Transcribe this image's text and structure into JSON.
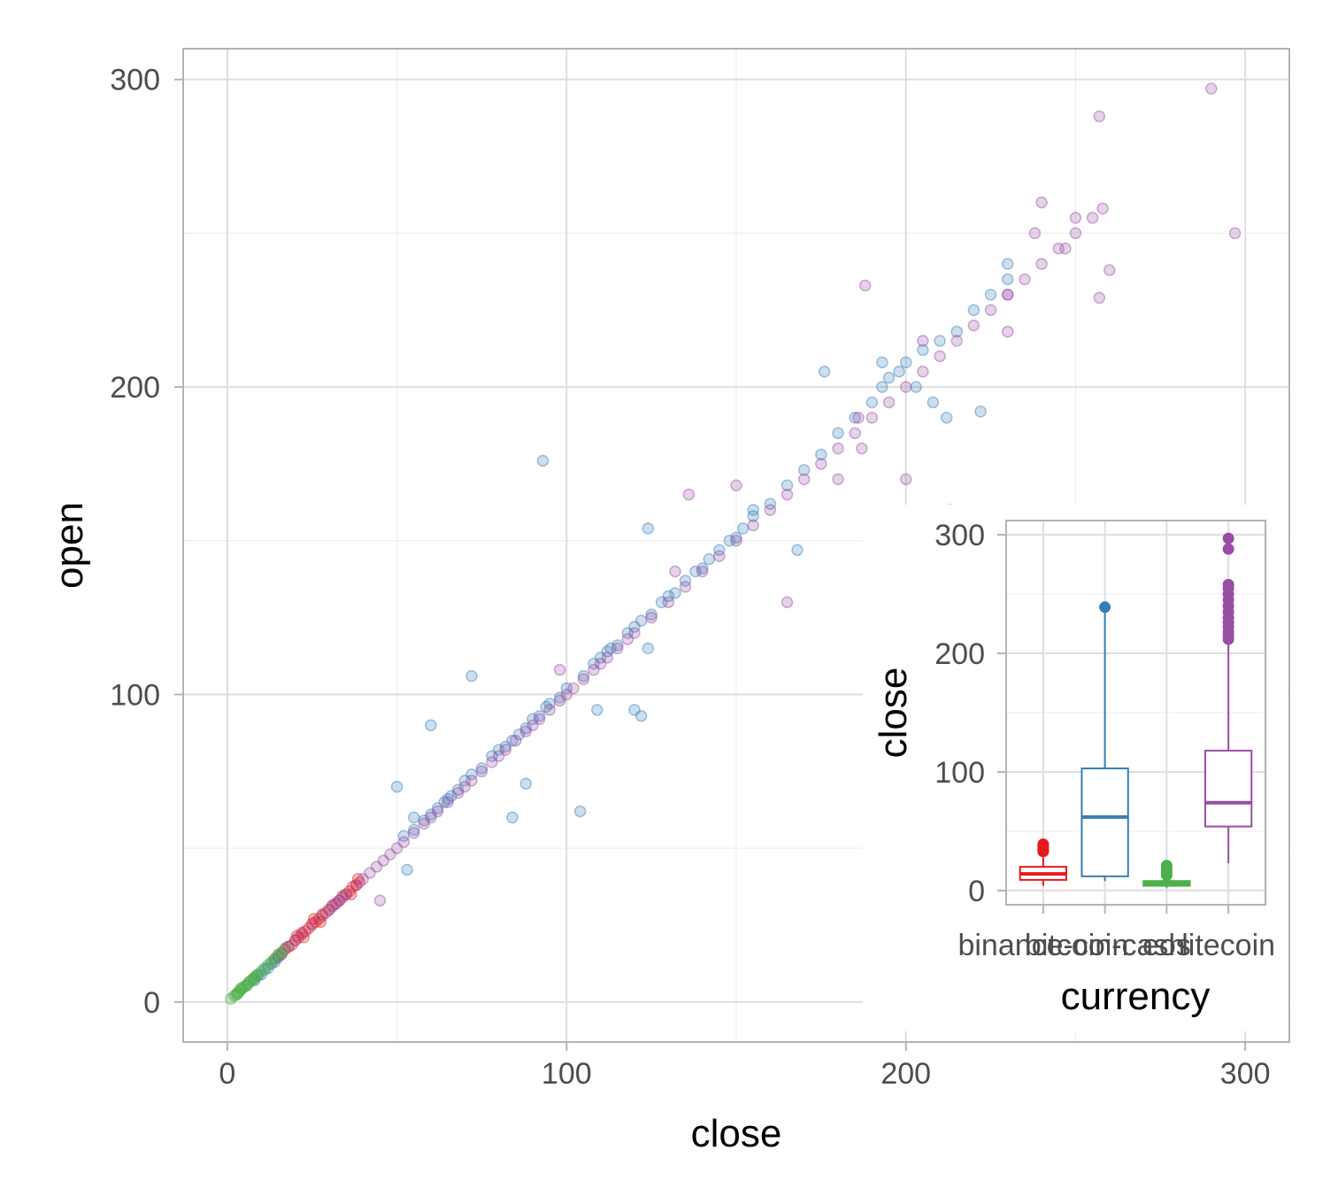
{
  "chart_data": [
    {
      "type": "scatter",
      "xlabel": "close",
      "ylabel": "open",
      "xlim": [
        -13,
        313
      ],
      "ylim": [
        -13,
        310
      ],
      "x_ticks": [
        0,
        100,
        200,
        300
      ],
      "y_ticks": [
        0,
        100,
        200,
        300
      ],
      "grid": true,
      "legend": "none",
      "point_alpha": 0.25,
      "series": [
        {
          "color": "#E41A1C",
          "points": [
            [
              14,
              14
            ],
            [
              15,
              15
            ],
            [
              16,
              15.5
            ],
            [
              17,
              17
            ],
            [
              18,
              18
            ],
            [
              19,
              18.5
            ],
            [
              20,
              20
            ],
            [
              21,
              21
            ],
            [
              22,
              22.5
            ],
            [
              23,
              23
            ],
            [
              24,
              24
            ],
            [
              25,
              25.5
            ],
            [
              26,
              26
            ],
            [
              27,
              27
            ],
            [
              28,
              28.5
            ],
            [
              29,
              29
            ],
            [
              30,
              30
            ],
            [
              31,
              31.5
            ],
            [
              32,
              32
            ],
            [
              33,
              33
            ],
            [
              34,
              34.5
            ],
            [
              35,
              35
            ],
            [
              36,
              36
            ],
            [
              37,
              37.5
            ],
            [
              38,
              38
            ],
            [
              39,
              39
            ],
            [
              38.5,
              40
            ],
            [
              36.5,
              35
            ],
            [
              27.5,
              26
            ],
            [
              25.5,
              27
            ],
            [
              22.5,
              21
            ],
            [
              20.5,
              21.5
            ]
          ]
        },
        {
          "color": "#377EB8",
          "points": [
            [
              8,
              7
            ],
            [
              9,
              8.5
            ],
            [
              10,
              9
            ],
            [
              11,
              10.5
            ],
            [
              12,
              11
            ],
            [
              13,
              12.5
            ],
            [
              14,
              13
            ],
            [
              15,
              14.5
            ],
            [
              16,
              16
            ],
            [
              52,
              54
            ],
            [
              55,
              56
            ],
            [
              58,
              59
            ],
            [
              60,
              61
            ],
            [
              62,
              63
            ],
            [
              64,
              65
            ],
            [
              65,
              66
            ],
            [
              66,
              67
            ],
            [
              68,
              69
            ],
            [
              70,
              72
            ],
            [
              72,
              74
            ],
            [
              75,
              76
            ],
            [
              78,
              80
            ],
            [
              80,
              82
            ],
            [
              82,
              83
            ],
            [
              84,
              85
            ],
            [
              86,
              87
            ],
            [
              88,
              89
            ],
            [
              90,
              92
            ],
            [
              92,
              93
            ],
            [
              95,
              97
            ],
            [
              98,
              99
            ],
            [
              100,
              102
            ],
            [
              105,
              106
            ],
            [
              108,
              110
            ],
            [
              110,
              112
            ],
            [
              112,
              114
            ],
            [
              115,
              116
            ],
            [
              118,
              120
            ],
            [
              120,
              122
            ],
            [
              122,
              124
            ],
            [
              125,
              126
            ],
            [
              128,
              130
            ],
            [
              130,
              132
            ],
            [
              132,
              133
            ],
            [
              135,
              137
            ],
            [
              138,
              140
            ],
            [
              140,
              141
            ],
            [
              142,
              144
            ],
            [
              145,
              147
            ],
            [
              148,
              150
            ],
            [
              150,
              151
            ],
            [
              152,
              154
            ],
            [
              155,
              158
            ],
            [
              160,
              162
            ],
            [
              165,
              168
            ],
            [
              170,
              173
            ],
            [
              175,
              178
            ],
            [
              180,
              185
            ],
            [
              185,
              190
            ],
            [
              190,
              195
            ],
            [
              193,
              200
            ],
            [
              195,
              203
            ],
            [
              198,
              205
            ],
            [
              200,
              208
            ],
            [
              205,
              212
            ],
            [
              210,
              215
            ],
            [
              215,
              218
            ],
            [
              220,
              225
            ],
            [
              225,
              230
            ],
            [
              230,
              235
            ],
            [
              93,
              176
            ],
            [
              72,
              106
            ],
            [
              60,
              90
            ],
            [
              104,
              62
            ],
            [
              84,
              60
            ],
            [
              50,
              70
            ],
            [
              53,
              43
            ],
            [
              55,
              60
            ],
            [
              88,
              71
            ],
            [
              94,
              96
            ],
            [
              109,
              95
            ],
            [
              120,
              95
            ],
            [
              124,
              115
            ],
            [
              113,
              115
            ],
            [
              122,
              93
            ],
            [
              168,
              147
            ],
            [
              176,
              205
            ],
            [
              202,
              120
            ],
            [
              212,
              190
            ],
            [
              222,
              192
            ],
            [
              124,
              154
            ],
            [
              155,
              160
            ],
            [
              193,
              208
            ],
            [
              203,
              200
            ],
            [
              208,
              195
            ],
            [
              230,
              240
            ]
          ]
        },
        {
          "color": "#4DAF4A",
          "points": [
            [
              1,
              1
            ],
            [
              2,
              2
            ],
            [
              2.5,
              2.3
            ],
            [
              3,
              3
            ],
            [
              3.5,
              3.3
            ],
            [
              4,
              4
            ],
            [
              4.5,
              4.5
            ],
            [
              5,
              5
            ],
            [
              5.5,
              5.2
            ],
            [
              6,
              6
            ],
            [
              6.5,
              6.6
            ],
            [
              7,
              7
            ],
            [
              7.5,
              7.4
            ],
            [
              8,
              8
            ],
            [
              8.5,
              8.6
            ],
            [
              9,
              9
            ],
            [
              10,
              10
            ],
            [
              11,
              11
            ],
            [
              12,
              12
            ],
            [
              13,
              13
            ],
            [
              14,
              14
            ],
            [
              15,
              15.5
            ],
            [
              16,
              16
            ],
            [
              17,
              17.5
            ],
            [
              3,
              2.5
            ],
            [
              4,
              4.5
            ],
            [
              6,
              5.5
            ],
            [
              8,
              7.5
            ]
          ]
        },
        {
          "color": "#984EA3",
          "points": [
            [
              18,
              18
            ],
            [
              20,
              20
            ],
            [
              22,
              22
            ],
            [
              25,
              25
            ],
            [
              28,
              28
            ],
            [
              30,
              30
            ],
            [
              31,
              31
            ],
            [
              32,
              32
            ],
            [
              33,
              33
            ],
            [
              34,
              34
            ],
            [
              35,
              35
            ],
            [
              38,
              38
            ],
            [
              40,
              40
            ],
            [
              42,
              42
            ],
            [
              44,
              44
            ],
            [
              46,
              46
            ],
            [
              48,
              48
            ],
            [
              50,
              50
            ],
            [
              52,
              52
            ],
            [
              55,
              55
            ],
            [
              58,
              58
            ],
            [
              60,
              60
            ],
            [
              62,
              62
            ],
            [
              65,
              65
            ],
            [
              68,
              68
            ],
            [
              70,
              70
            ],
            [
              72,
              72
            ],
            [
              75,
              75
            ],
            [
              78,
              78
            ],
            [
              80,
              80
            ],
            [
              82,
              82
            ],
            [
              85,
              85
            ],
            [
              88,
              88
            ],
            [
              90,
              90
            ],
            [
              92,
              92
            ],
            [
              95,
              95
            ],
            [
              98,
              98
            ],
            [
              100,
              100
            ],
            [
              102,
              102
            ],
            [
              105,
              105
            ],
            [
              108,
              108
            ],
            [
              110,
              110
            ],
            [
              112,
              112
            ],
            [
              115,
              115
            ],
            [
              118,
              118
            ],
            [
              120,
              120
            ],
            [
              125,
              125
            ],
            [
              130,
              130
            ],
            [
              135,
              135
            ],
            [
              140,
              140
            ],
            [
              145,
              145
            ],
            [
              150,
              150
            ],
            [
              155,
              155
            ],
            [
              160,
              160
            ],
            [
              165,
              165
            ],
            [
              170,
              170
            ],
            [
              175,
              175
            ],
            [
              180,
              180
            ],
            [
              185,
              185
            ],
            [
              190,
              190
            ],
            [
              195,
              195
            ],
            [
              200,
              200
            ],
            [
              205,
              205
            ],
            [
              210,
              210
            ],
            [
              215,
              215
            ],
            [
              220,
              220
            ],
            [
              225,
              225
            ],
            [
              230,
              230
            ],
            [
              235,
              235
            ],
            [
              240,
              240
            ],
            [
              245,
              245
            ],
            [
              250,
              250
            ],
            [
              255,
              255
            ],
            [
              258,
              258
            ],
            [
              290,
              297
            ],
            [
              257,
              288
            ],
            [
              240,
              260
            ],
            [
              250,
              255
            ],
            [
              260,
              238
            ],
            [
              257,
              229
            ],
            [
              297,
              250
            ],
            [
              188,
              233
            ],
            [
              213,
              160
            ],
            [
              165,
              130
            ],
            [
              187,
              180
            ],
            [
              205,
              215
            ],
            [
              230,
              218
            ],
            [
              238,
              250
            ],
            [
              247,
              245
            ],
            [
              45,
              33
            ],
            [
              180,
              170
            ],
            [
              186,
              190
            ],
            [
              230,
              230
            ],
            [
              200,
              170
            ],
            [
              150,
              168
            ],
            [
              136,
              165
            ],
            [
              132,
              140
            ],
            [
              98,
              108
            ]
          ]
        }
      ]
    },
    {
      "type": "box",
      "xlabel": "currency",
      "ylabel": "close",
      "categories": [
        "binance-coin",
        "bitcoin-cash",
        "eos",
        "litecoin"
      ],
      "ylim": [
        -12,
        312
      ],
      "y_ticks": [
        0,
        100,
        200,
        300
      ],
      "grid": true,
      "legend": "none",
      "boxes": [
        {
          "category": "binance-coin",
          "color": "#E41A1C",
          "whisker_low": 4,
          "q1": 9,
          "median": 14,
          "q3": 20,
          "whisker_high": 28,
          "outliers": [
            33,
            34,
            35,
            36,
            37,
            38,
            39
          ]
        },
        {
          "category": "bitcoin-cash",
          "color": "#377EB8",
          "whisker_low": 8,
          "q1": 12,
          "median": 62,
          "q3": 103,
          "whisker_high": 236,
          "outliers": [
            239
          ]
        },
        {
          "category": "eos",
          "color": "#4DAF4A",
          "whisker_low": 2,
          "q1": 4,
          "median": 6,
          "q3": 8,
          "whisker_high": 12,
          "outliers": [
            13,
            15,
            17,
            19,
            21
          ]
        },
        {
          "category": "litecoin",
          "color": "#984EA3",
          "whisker_low": 23,
          "q1": 54,
          "median": 74,
          "q3": 118,
          "whisker_high": 210,
          "outliers": [
            212,
            215,
            218,
            222,
            226,
            230,
            235,
            240,
            245,
            250,
            255,
            258,
            288,
            297
          ]
        }
      ]
    }
  ]
}
